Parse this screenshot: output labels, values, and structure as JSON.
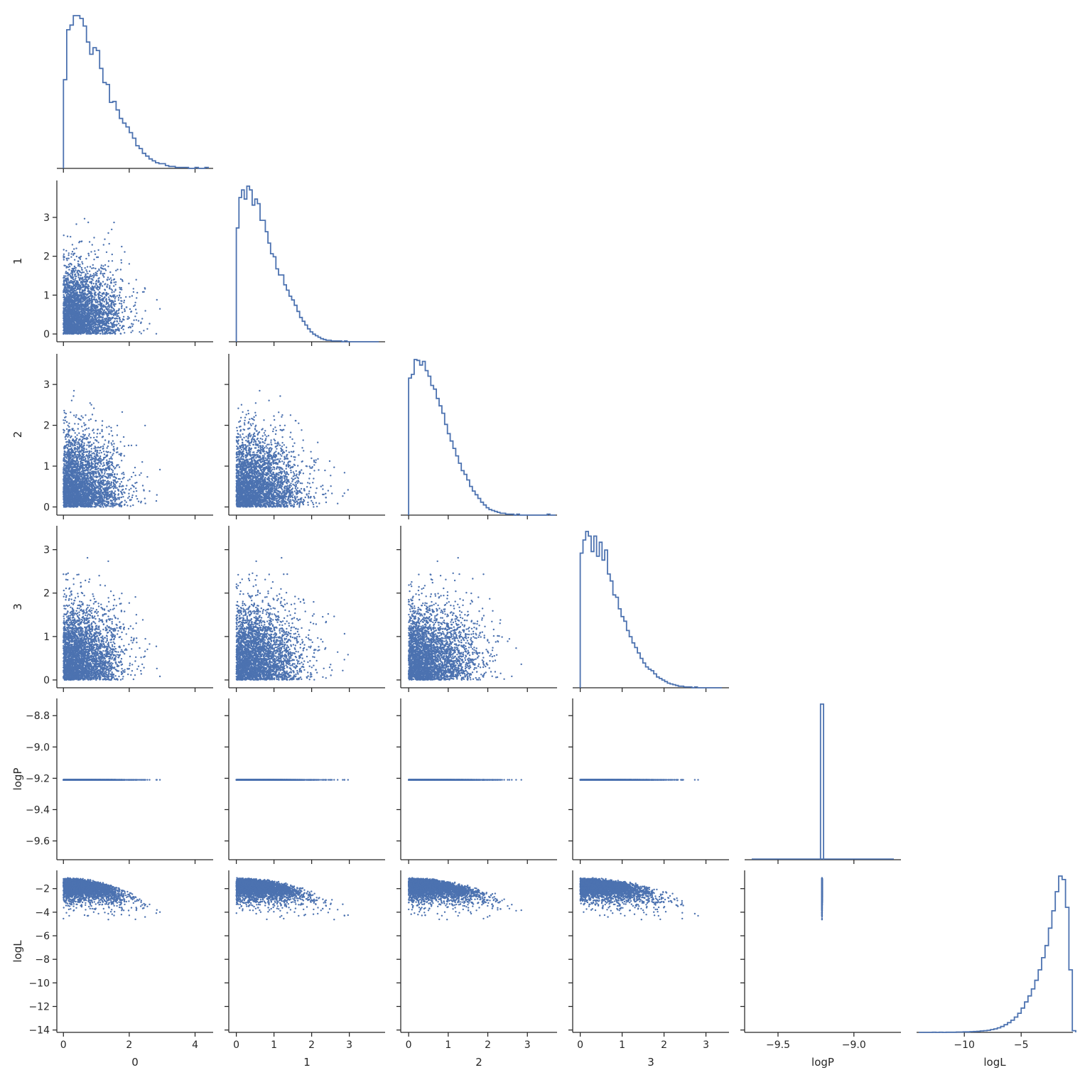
{
  "colors": {
    "series": "#4c72b0",
    "axis": "#262626",
    "background": "#ffffff"
  },
  "chart_data": {
    "type": "scatter",
    "variables": [
      "0",
      "1",
      "2",
      "3",
      "logP",
      "logL"
    ],
    "layout": "corner pairplot (lower triangle scatter, diagonal step histograms)",
    "axis_labels": {
      "0": "0",
      "1": "1",
      "2": "2",
      "3": "3",
      "logP": "logP",
      "logL": "logL"
    },
    "ranges": {
      "0": [
        -0.2,
        4.55
      ],
      "1": [
        -0.2,
        3.95
      ],
      "2": [
        -0.2,
        3.75
      ],
      "3": [
        -0.18,
        3.55
      ],
      "logP": [
        -9.72,
        -8.69
      ],
      "logL": [
        -14.2,
        -0.45
      ]
    },
    "ticks": {
      "0": [
        0,
        2,
        4
      ],
      "1": [
        0,
        1,
        2,
        3
      ],
      "2": [
        0,
        1,
        2,
        3
      ],
      "3": [
        0,
        1,
        2,
        3
      ],
      "logP": [
        -9.6,
        -9.4,
        -9.2,
        -9.0,
        -8.8
      ],
      "logL": [
        -14,
        -12,
        -10,
        -8,
        -6,
        -4,
        -2
      ]
    },
    "x_ticks_bottom": {
      "logP": [
        -9.5,
        -9.0
      ],
      "logL": [
        -10,
        -5
      ]
    },
    "tick_labels": {
      "0": [
        "0",
        "2",
        "4"
      ],
      "1": [
        "0",
        "1",
        "2",
        "3"
      ],
      "2": [
        "0",
        "1",
        "2",
        "3"
      ],
      "3": [
        "0",
        "1",
        "2",
        "3"
      ],
      "logP": [
        "−9.6",
        "−9.4",
        "−9.2",
        "−9.0",
        "−8.8"
      ],
      "logL": [
        "−14",
        "−12",
        "−10",
        "−8",
        "−6",
        "−4",
        "−2"
      ]
    },
    "x_tick_labels_bottom": {
      "logP": [
        "−9.5",
        "−9.0"
      ],
      "logL": [
        "−10",
        "−5"
      ]
    },
    "logP_constant_value": -9.21,
    "histograms": {
      "0": {
        "bin_start": 0.0,
        "bin_width": 0.1,
        "counts": [
          94,
          147,
          152,
          162,
          162,
          159,
          151,
          134,
          121,
          128,
          125,
          106,
          91,
          89,
          70,
          71,
          62,
          53,
          48,
          44,
          38,
          32,
          24,
          21,
          16,
          13,
          10,
          8,
          6,
          5,
          5,
          3,
          2,
          2,
          1,
          1,
          1,
          1,
          0,
          0,
          1,
          0,
          0,
          1
        ]
      },
      "1": {
        "bin_start": 0.0,
        "bin_width": 0.07,
        "counts": [
          150,
          190,
          200,
          188,
          205,
          200,
          180,
          188,
          182,
          160,
          160,
          145,
          130,
          116,
          112,
          96,
          88,
          88,
          75,
          68,
          60,
          55,
          48,
          40,
          32,
          27,
          22,
          17,
          13,
          10,
          8,
          6,
          4,
          3,
          2,
          2,
          1,
          1,
          1,
          1,
          0,
          1,
          0,
          0,
          0,
          0,
          0,
          0,
          0,
          0,
          0,
          0,
          0,
          0
        ]
      },
      "2": {
        "bin_start": 0.0,
        "bin_width": 0.07,
        "counts": [
          148,
          152,
          168,
          167,
          162,
          166,
          156,
          150,
          140,
          136,
          126,
          118,
          110,
          98,
          88,
          80,
          72,
          64,
          56,
          48,
          44,
          38,
          31,
          26,
          22,
          18,
          14,
          11,
          8,
          6,
          5,
          4,
          3,
          2,
          2,
          1,
          1,
          1,
          0,
          1,
          0,
          0,
          0,
          0,
          0,
          0,
          0,
          0,
          0,
          0,
          1,
          0,
          0
        ]
      },
      "3": {
        "bin_start": 0.0,
        "bin_width": 0.065,
        "counts": [
          174,
          191,
          202,
          196,
          176,
          196,
          170,
          188,
          165,
          178,
          147,
          138,
          120,
          117,
          102,
          92,
          86,
          74,
          66,
          58,
          52,
          45,
          38,
          32,
          27,
          24,
          22,
          18,
          14,
          12,
          10,
          8,
          6,
          5,
          4,
          3,
          2,
          2,
          1,
          1,
          1,
          0,
          1,
          0,
          0,
          0,
          0,
          0,
          0,
          0,
          0,
          0
        ]
      },
      "logP": {
        "bin_start": -9.22,
        "bin_width": 0.02,
        "counts": [
          1
        ]
      },
      "logL": {
        "bin_start": -14.0,
        "bin_width": 0.3,
        "counts": [
          0,
          0,
          0,
          0,
          1,
          0,
          1,
          0,
          1,
          1,
          1,
          2,
          2,
          3,
          3,
          4,
          5,
          6,
          8,
          10,
          12,
          16,
          20,
          26,
          34,
          44,
          56,
          70,
          88,
          110,
          140,
          175,
          210,
          250,
          300,
          360,
          430,
          500,
          600,
          700,
          810,
          900,
          880,
          720,
          360,
          10
        ]
      }
    },
    "scatter": {
      "n_points": 3200,
      "marginal_shape": "half-normal-like, mode near 0.3, sd 0.9",
      "logL_relation": "logL ≈ -1 - 0.5·(sum of squares of 0..3), upper envelope near -1.1"
    }
  }
}
